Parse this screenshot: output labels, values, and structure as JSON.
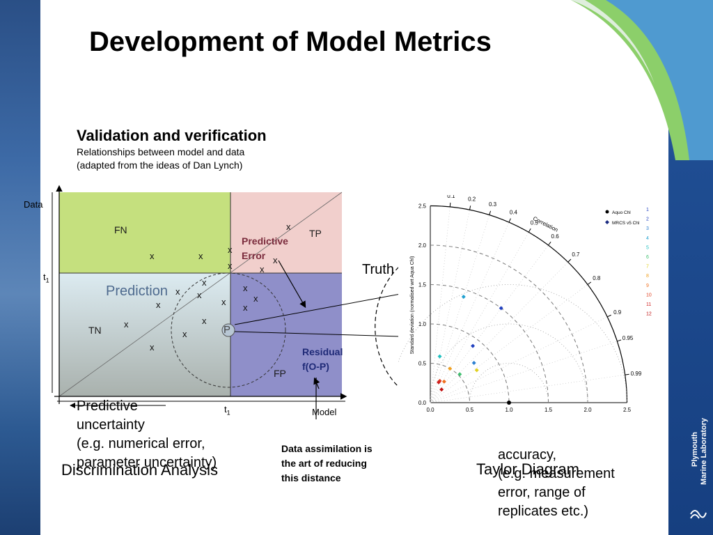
{
  "slide": {
    "title": "Development of Model Metrics",
    "heading": "Validation and verification",
    "subline1": "Relationships between model and data",
    "subline2": "(adapted from the ideas of Dan Lynch)"
  },
  "diagram": {
    "axis_y": "Data",
    "axis_x": "Model",
    "t1_y": "t",
    "t1_x": "t",
    "t1_sub": "1",
    "quadrants": {
      "fn": "FN",
      "tp": "TP",
      "tn": "TN",
      "fp": "FP"
    },
    "prediction": "Prediction",
    "predictive_error_1": "Predictive",
    "predictive_error_2": "Error",
    "residual_1": "Residual",
    "residual_2": "f(O-P)",
    "p_marker": "P",
    "x_mark": "x",
    "truth": "Truth",
    "colors": {
      "fn": "#c5e07e",
      "tp": "#f1cfcc",
      "tn_top": "#dcebf1",
      "tn_bottom": "#a9b1ad",
      "fp": "#8f8fc9",
      "predictive_error": "#7a2b3c",
      "residual": "#1f2a77"
    }
  },
  "annotations": {
    "predictive_uncertainty": [
      "Predictive",
      "uncertainty",
      "(e.g. numerical error,",
      "parameter uncertainty)"
    ],
    "discrimination": "Discrimination Analysis",
    "data_assimilation": [
      "Data assimilation is",
      "the art of reducing",
      "this distance"
    ],
    "taylor_caption": "Taylor Diagram",
    "accuracy": [
      "accuracy,",
      "(e.g. measurement",
      "error, range of",
      "replicates etc.)"
    ]
  },
  "taylor": {
    "ylabel": "Standard deviation (normalised wrt Aqua Chl)",
    "correlation_label": "Correlation",
    "correlation_ticks": [
      "0.1",
      "0.2",
      "0.3",
      "0.4",
      "0.5",
      "0.6",
      "0.7",
      "0.8",
      "0.9",
      "0.95",
      "0.99"
    ],
    "y_ticks": [
      "0.0",
      "0.5",
      "1.0",
      "1.5",
      "2.0",
      "2.5"
    ],
    "x_ticks": [
      "0.0",
      "0.5",
      "1.0",
      "1.5",
      "2.0",
      "2.5"
    ],
    "legend": [
      "Aquo Chl",
      "MRCS v5 Chl"
    ],
    "series_numbers": [
      "1",
      "2",
      "3",
      "4",
      "5",
      "6",
      "7",
      "8",
      "9",
      "10",
      "11",
      "12"
    ],
    "series_colors": [
      "#1f3fbf",
      "#1f3fbf",
      "#2c7fd0",
      "#20a0d0",
      "#20c0c0",
      "#40c070",
      "#e0d020",
      "#f0a020",
      "#f07020",
      "#e04020",
      "#d02020",
      "#c01010"
    ]
  },
  "logo": {
    "line1": "Plymouth",
    "line2": "Marine Laboratory"
  }
}
